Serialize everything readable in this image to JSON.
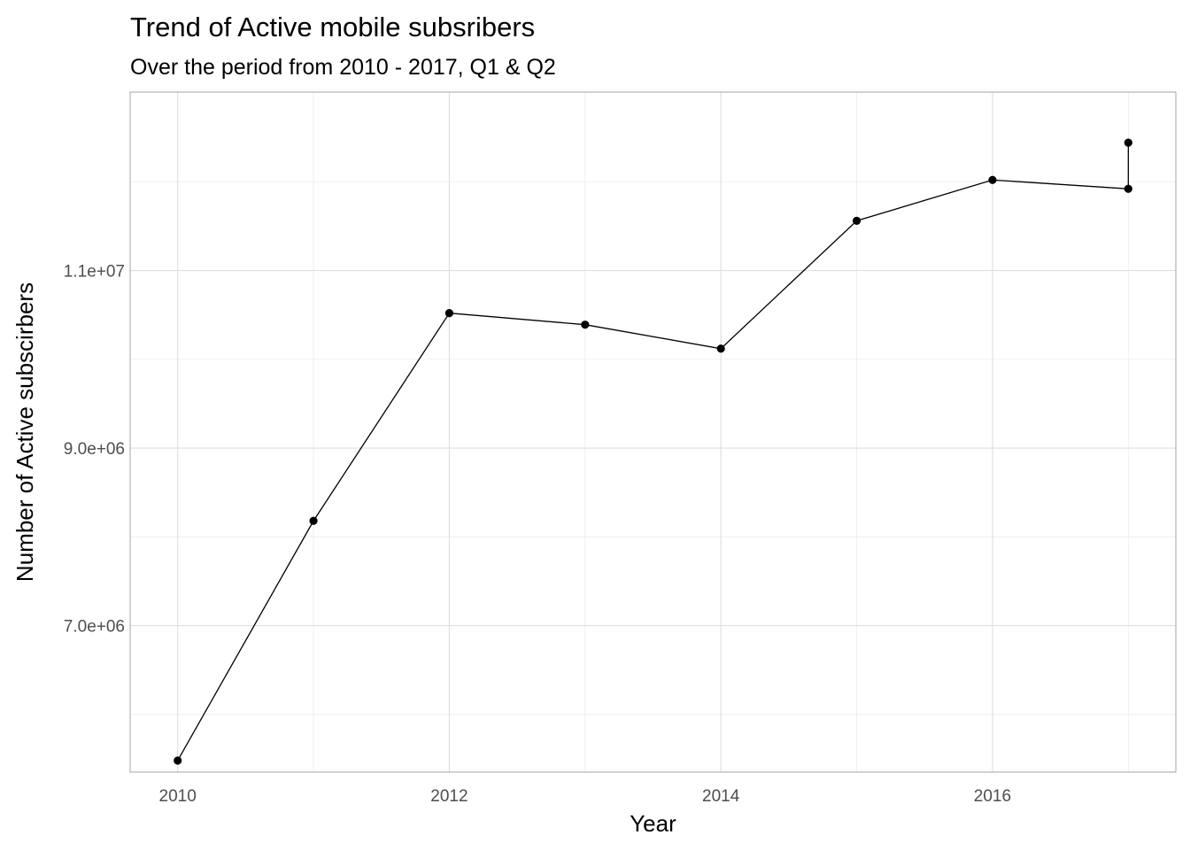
{
  "chart_data": {
    "type": "line",
    "title": "Trend of Active mobile subsribers",
    "subtitle": "Over the period from 2010 - 2017, Q1 & Q2",
    "xlabel": "Year",
    "ylabel": "Number of Active subscirbers",
    "x_ticks": [
      2010,
      2012,
      2014,
      2016
    ],
    "x_tick_labels": [
      "2010",
      "2012",
      "2014",
      "2016"
    ],
    "y_ticks": [
      7000000,
      9000000,
      11000000
    ],
    "y_tick_labels": [
      "7.0e+06",
      "9.0e+06",
      "1.1e+07"
    ],
    "xlim": [
      2009.65,
      2017.35
    ],
    "ylim": [
      5350000,
      13010000
    ],
    "grid": true,
    "legend": "none",
    "series": [
      {
        "x": [
          2010,
          2011,
          2012,
          2013,
          2014,
          2015,
          2016,
          2017,
          2017
        ],
        "y": [
          5480000,
          8180000,
          10520000,
          10390000,
          10120000,
          11560000,
          12020000,
          11920000,
          12440000
        ]
      }
    ]
  }
}
